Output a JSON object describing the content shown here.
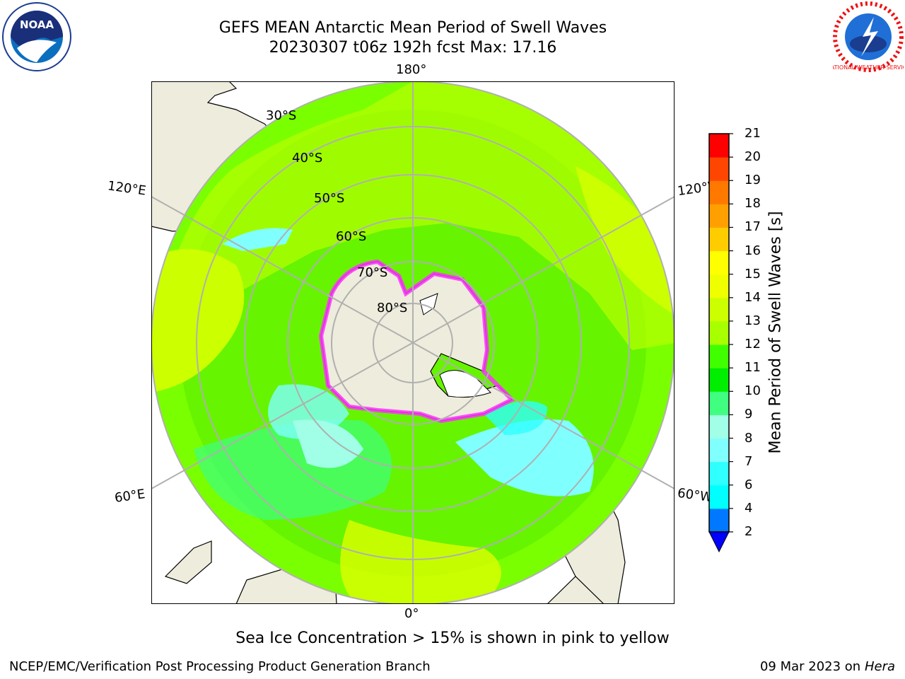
{
  "header": {
    "title_line1": "GEFS MEAN Antarctic Mean Period of Swell Waves",
    "title_line2": "20230307 t06z 192h fcst   Max: 17.16"
  },
  "map": {
    "projection": "south-polar-stereographic",
    "longitude_labels": {
      "top": "180°",
      "bottom": "0°",
      "left_upper": "120°E",
      "left_lower": "60°E",
      "right_upper": "120°W",
      "right_lower": "60°W"
    },
    "latitude_labels": [
      "30°S",
      "40°S",
      "50°S",
      "60°S",
      "70°S",
      "80°S"
    ],
    "colors": {
      "land": "#eeecdc",
      "ice_edge": "#ff30ff",
      "grid": "#b0b0b0"
    }
  },
  "colorbar": {
    "label": "Mean Period of Swell Waves [s]",
    "ticks": [
      "2",
      "4",
      "6",
      "7",
      "8",
      "9",
      "10",
      "11",
      "12",
      "13",
      "14",
      "15",
      "16",
      "17",
      "18",
      "19",
      "20",
      "21"
    ],
    "colors": [
      "#0078ff",
      "#00ffff",
      "#30ffff",
      "#80ffff",
      "#a0ffe6",
      "#40ff80",
      "#00ee00",
      "#40ff00",
      "#a8ff00",
      "#ccff00",
      "#f0ff00",
      "#ffff00",
      "#ffcc00",
      "#ffa000",
      "#ff7800",
      "#ff4600",
      "#ff0000"
    ],
    "extend_min_color": "#0000ff"
  },
  "logos": {
    "left_text": "NOAA",
    "right_text": "NATIONAL WEATHER SERVICE"
  },
  "footer": {
    "note": "Sea Ice Concentration > 15% is shown in pink to yellow",
    "credit": "NCEP/EMC/Verification Post Processing Product Generation Branch",
    "date": "09 Mar 2023 on",
    "machine": "Hera"
  }
}
